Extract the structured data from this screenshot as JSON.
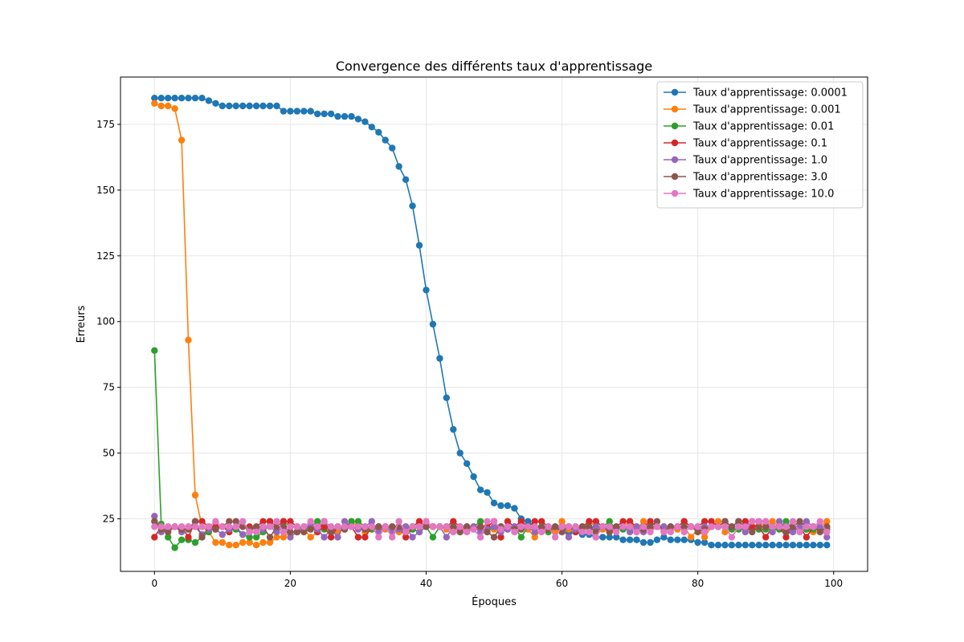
{
  "chart_data": {
    "type": "line",
    "title": "Convergence des différents taux d'apprentissage",
    "xlabel": "Époques",
    "ylabel": "Erreurs",
    "xlim": [
      -5,
      105
    ],
    "ylim": [
      5,
      193
    ],
    "x_ticks": [
      0,
      20,
      40,
      60,
      80,
      100
    ],
    "y_ticks": [
      25,
      50,
      75,
      100,
      125,
      150,
      175
    ],
    "grid": true,
    "legend_position": "top-right",
    "x": [
      0,
      1,
      2,
      3,
      4,
      5,
      6,
      7,
      8,
      9,
      10,
      11,
      12,
      13,
      14,
      15,
      16,
      17,
      18,
      19,
      20,
      21,
      22,
      23,
      24,
      25,
      26,
      27,
      28,
      29,
      30,
      31,
      32,
      33,
      34,
      35,
      36,
      37,
      38,
      39,
      40,
      41,
      42,
      43,
      44,
      45,
      46,
      47,
      48,
      49,
      50,
      51,
      52,
      53,
      54,
      55,
      56,
      57,
      58,
      59,
      60,
      61,
      62,
      63,
      64,
      65,
      66,
      67,
      68,
      69,
      70,
      71,
      72,
      73,
      74,
      75,
      76,
      77,
      78,
      79,
      80,
      81,
      82,
      83,
      84,
      85,
      86,
      87,
      88,
      89,
      90,
      91,
      92,
      93,
      94,
      95,
      96,
      97,
      98,
      99
    ],
    "series": [
      {
        "name": "Taux d'apprentissage: 0.0001",
        "color": "#1f77b4",
        "values": [
          185,
          185,
          185,
          185,
          185,
          185,
          185,
          185,
          184,
          183,
          182,
          182,
          182,
          182,
          182,
          182,
          182,
          182,
          182,
          180,
          180,
          180,
          180,
          180,
          179,
          179,
          179,
          178,
          178,
          178,
          177,
          176,
          174,
          172,
          169,
          166,
          159,
          154,
          144,
          129,
          112,
          99,
          86,
          71,
          59,
          50,
          46,
          41,
          36,
          35,
          31,
          30,
          30,
          29,
          25,
          24,
          22,
          22,
          22,
          21,
          21,
          20,
          20,
          19,
          19,
          18,
          18,
          18,
          18,
          17,
          17,
          17,
          16,
          16,
          17,
          18,
          17,
          17,
          17,
          17,
          16,
          16,
          15,
          15,
          15,
          15,
          15,
          15,
          15,
          15,
          15,
          15,
          15,
          15,
          15,
          15,
          15,
          15,
          15,
          15
        ]
      },
      {
        "name": "Taux d'apprentissage: 0.001",
        "color": "#ff7f0e",
        "values": [
          183,
          182,
          182,
          181,
          169,
          93,
          34,
          22,
          20,
          16,
          16,
          15,
          15,
          16,
          16,
          15,
          16,
          16,
          18,
          18,
          20,
          20,
          21,
          18,
          20,
          22,
          21,
          20,
          21,
          24,
          22,
          20,
          21,
          21,
          21,
          22,
          20,
          22,
          21,
          22,
          22,
          22,
          22,
          21,
          21,
          22,
          21,
          22,
          21,
          22,
          21,
          22,
          21,
          21,
          22,
          21,
          18,
          21,
          21,
          20,
          24,
          21,
          22,
          21,
          24,
          22,
          21,
          20,
          21,
          22,
          24,
          21,
          24,
          21,
          22,
          21,
          22,
          21,
          22,
          18,
          21,
          18,
          22,
          24,
          20,
          22,
          24,
          22,
          21,
          24,
          22,
          24,
          22,
          20,
          22,
          21,
          21,
          20,
          22,
          24
        ]
      },
      {
        "name": "Taux d'apprentissage: 0.01",
        "color": "#2ca02c",
        "values": [
          89,
          23,
          18,
          14,
          17,
          17,
          16,
          18,
          20,
          22,
          22,
          21,
          21,
          19,
          18,
          18,
          20,
          24,
          22,
          24,
          22,
          22,
          21,
          22,
          24,
          21,
          22,
          22,
          22,
          24,
          24,
          22,
          21,
          22,
          22,
          22,
          22,
          22,
          21,
          20,
          22,
          18,
          22,
          22,
          22,
          22,
          22,
          22,
          24,
          20,
          22,
          22,
          22,
          22,
          18,
          22,
          22,
          22,
          20,
          22,
          21,
          22,
          21,
          22,
          21,
          22,
          22,
          24,
          21,
          21,
          22,
          22,
          22,
          22,
          22,
          22,
          22,
          22,
          24,
          22,
          22,
          22,
          22,
          22,
          22,
          21,
          21,
          21,
          21,
          21,
          21,
          21,
          21,
          24,
          21,
          21,
          21,
          21,
          21,
          21
        ]
      },
      {
        "name": "Taux d'apprentissage: 0.1",
        "color": "#d62728",
        "values": [
          18,
          22,
          22,
          22,
          22,
          18,
          24,
          24,
          22,
          22,
          22,
          20,
          22,
          22,
          22,
          22,
          24,
          24,
          22,
          24,
          24,
          22,
          22,
          22,
          20,
          22,
          18,
          22,
          22,
          22,
          18,
          18,
          22,
          22,
          22,
          22,
          22,
          18,
          22,
          24,
          22,
          22,
          22,
          22,
          24,
          22,
          22,
          22,
          22,
          22,
          24,
          18,
          24,
          22,
          24,
          22,
          24,
          24,
          22,
          22,
          22,
          22,
          20,
          22,
          24,
          24,
          22,
          22,
          22,
          24,
          24,
          22,
          22,
          24,
          22,
          22,
          22,
          22,
          24,
          22,
          22,
          24,
          24,
          22,
          24,
          22,
          24,
          24,
          22,
          22,
          18,
          22,
          22,
          18,
          22,
          22,
          18,
          22,
          22,
          22
        ]
      },
      {
        "name": "Taux d'apprentissage: 1.0",
        "color": "#9467bd",
        "values": [
          26,
          20,
          21,
          22,
          20,
          22,
          22,
          19,
          21,
          21,
          19,
          21,
          22,
          19,
          20,
          22,
          21,
          22,
          20,
          22,
          18,
          20,
          22,
          22,
          21,
          18,
          21,
          18,
          24,
          22,
          21,
          22,
          24,
          20,
          22,
          20,
          21,
          22,
          18,
          20,
          22,
          22,
          22,
          18,
          22,
          20,
          22,
          22,
          20,
          21,
          22,
          20,
          21,
          22,
          22,
          22,
          20,
          22,
          22,
          22,
          21,
          18,
          21,
          22,
          21,
          22,
          22,
          21,
          22,
          22,
          20,
          22,
          20,
          22,
          22,
          22,
          22,
          22,
          22,
          22,
          21,
          22,
          22,
          22,
          24,
          22,
          22,
          20,
          24,
          24,
          24,
          20,
          24,
          22,
          20,
          22,
          24,
          22,
          22,
          18
        ]
      },
      {
        "name": "Taux d'apprentissage: 3.0",
        "color": "#8c564b",
        "values": [
          24,
          21,
          20,
          22,
          21,
          21,
          24,
          18,
          22,
          21,
          22,
          24,
          24,
          22,
          21,
          22,
          22,
          18,
          22,
          22,
          20,
          20,
          20,
          21,
          22,
          24,
          20,
          22,
          21,
          22,
          22,
          21,
          22,
          22,
          22,
          22,
          22,
          20,
          22,
          22,
          22,
          22,
          22,
          22,
          22,
          20,
          22,
          21,
          22,
          20,
          18,
          22,
          22,
          21,
          21,
          22,
          22,
          22,
          21,
          22,
          20,
          22,
          22,
          22,
          22,
          20,
          22,
          20,
          22,
          22,
          22,
          20,
          21,
          22,
          24,
          20,
          22,
          22,
          22,
          22,
          20,
          21,
          22,
          22,
          24,
          22,
          24,
          22,
          20,
          22,
          22,
          22,
          22,
          20,
          22,
          24,
          22,
          22,
          20,
          22
        ]
      },
      {
        "name": "Taux d'apprentissage: 10.0",
        "color": "#e377c2",
        "values": [
          22,
          22,
          22,
          22,
          22,
          22,
          22,
          22,
          22,
          24,
          22,
          22,
          22,
          24,
          20,
          20,
          22,
          22,
          24,
          20,
          22,
          22,
          22,
          24,
          22,
          24,
          22,
          22,
          22,
          22,
          22,
          22,
          22,
          18,
          22,
          18,
          24,
          20,
          22,
          22,
          24,
          22,
          22,
          22,
          20,
          22,
          20,
          21,
          18,
          24,
          24,
          21,
          22,
          20,
          22,
          22,
          22,
          20,
          22,
          18,
          22,
          22,
          22,
          20,
          20,
          18,
          22,
          22,
          20,
          22,
          22,
          20,
          22,
          20,
          22,
          20,
          20,
          22,
          20,
          22,
          22,
          20,
          22,
          22,
          22,
          18,
          22,
          22,
          24,
          24,
          24,
          22,
          22,
          22,
          24,
          20,
          22,
          22,
          24,
          20
        ]
      }
    ]
  }
}
